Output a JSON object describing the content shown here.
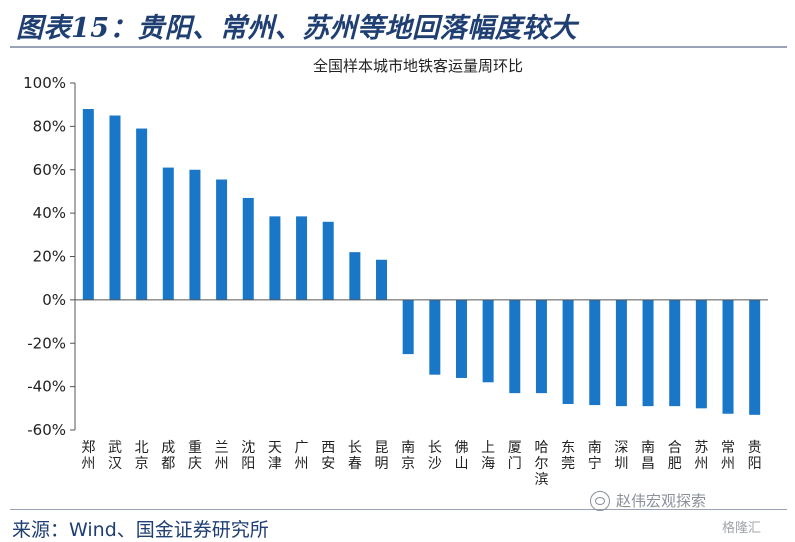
{
  "figure": {
    "title": "图表15：贵阳、常州、苏州等地回落幅度较大",
    "source": "来源：Wind、国金证券研究所",
    "watermark": "赵伟宏观探索",
    "watermark2": "格隆汇"
  },
  "colors": {
    "bar": "#1a76c6",
    "title": "#1f3f73",
    "axis": "#555555"
  },
  "chart_data": {
    "type": "bar",
    "title": "全国样本城市地铁客运量周环比",
    "xlabel": "",
    "ylabel": "",
    "ylim": [
      -60,
      100
    ],
    "yticks": [
      100,
      80,
      60,
      40,
      20,
      0,
      -20,
      -40,
      -60
    ],
    "ytick_labels": [
      "100%",
      "80%",
      "60%",
      "40%",
      "20%",
      "0%",
      "-20%",
      "-40%",
      "-60%"
    ],
    "grid": false,
    "legend": "none",
    "categories": [
      "郑州",
      "武汉",
      "北京",
      "成都",
      "重庆",
      "兰州",
      "沈阳",
      "天津",
      "广州",
      "西安",
      "长春",
      "昆明",
      "南京",
      "长沙",
      "佛山",
      "上海",
      "厦门",
      "哈尔滨",
      "东莞",
      "南宁",
      "深圳",
      "南昌",
      "合肥",
      "苏州",
      "常州",
      "贵阳"
    ],
    "values": [
      88,
      85,
      79,
      61,
      60,
      55.5,
      47,
      38.5,
      38.5,
      36,
      22,
      18.5,
      -25,
      -34.5,
      -36,
      -38,
      -43,
      -43,
      -48,
      -48.5,
      -49,
      -49,
      -49,
      -50,
      -52.5,
      -53
    ]
  }
}
